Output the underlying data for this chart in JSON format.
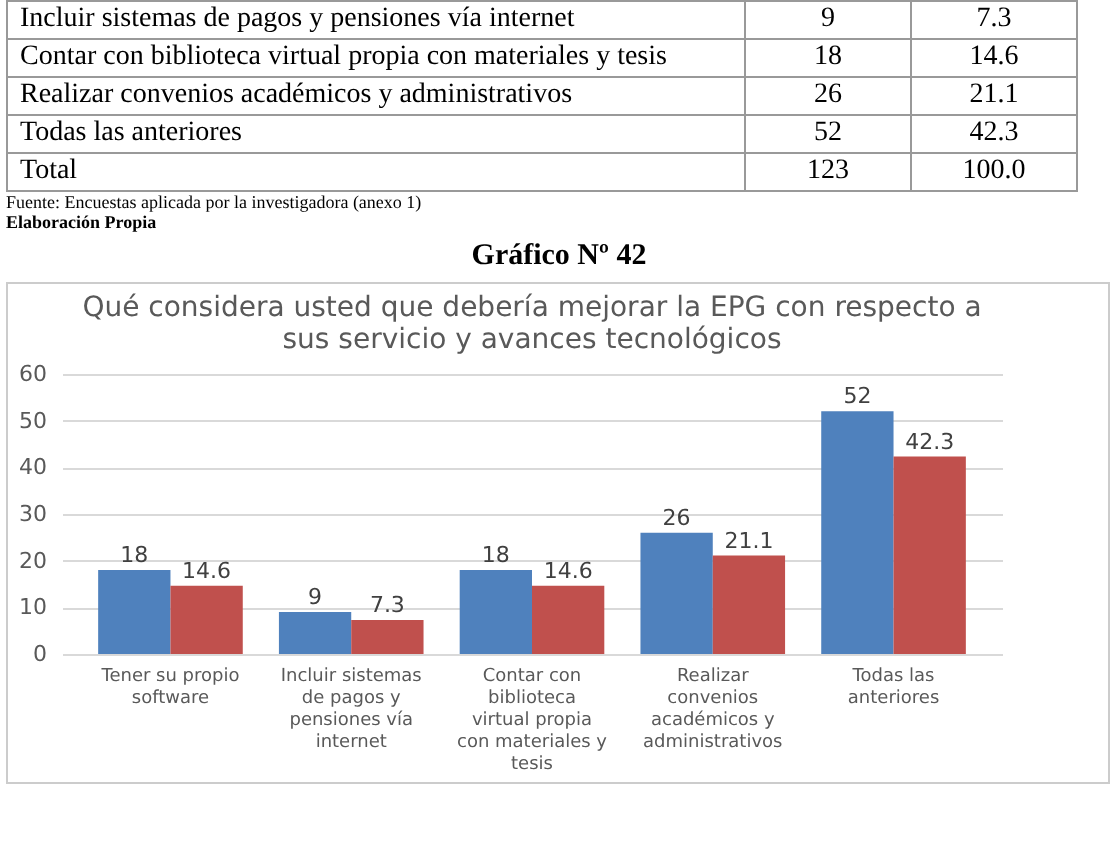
{
  "chart_data": {
    "type": "bar",
    "title": [
      "Qué considera usted que debería mejorar la EPG con respecto a",
      "sus servicio y avances tecnológicos"
    ],
    "categories": [
      "Tener  su  propio software",
      "Incluir  sistemas de  pagos y pensiones vía internet",
      "Contar con biblioteca virtual propia con materiales y tesis",
      "Realizar convenios académicos y administrativos",
      "Todas las anteriores"
    ],
    "series": [
      {
        "color": "#4f81bd",
        "values": [
          18,
          9,
          18,
          26,
          52
        ]
      },
      {
        "color": "#c0504d",
        "values": [
          14.6,
          7.3,
          14.6,
          21.1,
          42.3
        ]
      }
    ],
    "ylim": [
      0,
      60
    ],
    "yticks": [
      0,
      10,
      20,
      30,
      40,
      50,
      60
    ],
    "grid": "y",
    "data_labels": true,
    "annotations": [
      "Incluir sistemas de pagos y pensiones vía internet",
      "9",
      "7.3",
      "Contar con biblioteca virtual propia con materiales y tesis",
      "18",
      "14.6",
      "Realizar convenios académicos y administrativos",
      "26",
      "21.1",
      "Todas las anteriores",
      "52",
      "42.3",
      "Total",
      "123",
      "100.0",
      "Fuente: Encuestas aplicada por la investigadora (anexo 1)",
      "Elaboración Propia",
      "Gráfico Nº 42"
    ]
  }
}
